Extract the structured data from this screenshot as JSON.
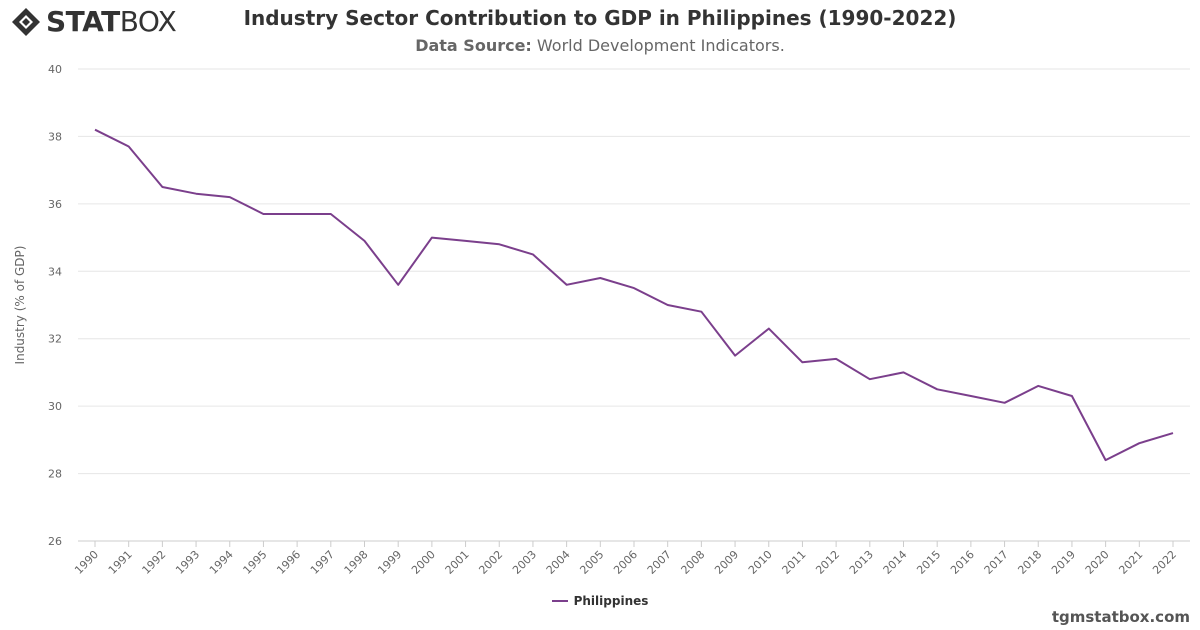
{
  "brand": {
    "logo_bold": "STAT",
    "logo_light": "BOX",
    "colors": {
      "logo": "#333333"
    }
  },
  "header": {
    "title": "Industry Sector Contribution to GDP in Philippines (1990-2022)",
    "subtitle_label": "Data Source:",
    "subtitle_value": "World Development Indicators."
  },
  "footer": {
    "credit": "tgmstatbox.com"
  },
  "chart_data": {
    "type": "line",
    "title": "Industry Sector Contribution to GDP in Philippines (1990-2022)",
    "xlabel": "",
    "ylabel": "Industry (% of GDP)",
    "ylim": [
      26,
      40
    ],
    "yticks": [
      26,
      28,
      30,
      32,
      34,
      36,
      38,
      40
    ],
    "grid": true,
    "legend_position": "bottom-center",
    "x": [
      "1990",
      "1991",
      "1992",
      "1993",
      "1994",
      "1995",
      "1996",
      "1997",
      "1998",
      "1999",
      "2000",
      "2001",
      "2002",
      "2003",
      "2004",
      "2005",
      "2006",
      "2007",
      "2008",
      "2009",
      "2010",
      "2011",
      "2012",
      "2013",
      "2014",
      "2015",
      "2016",
      "2017",
      "2018",
      "2019",
      "2020",
      "2021",
      "2022"
    ],
    "series": [
      {
        "name": "Philippines",
        "color": "#7b3f8c",
        "values": [
          38.2,
          37.7,
          36.5,
          36.3,
          36.2,
          35.7,
          35.7,
          35.7,
          34.9,
          33.6,
          35.0,
          34.9,
          34.8,
          34.5,
          33.6,
          33.8,
          33.5,
          33.0,
          32.8,
          31.5,
          32.3,
          31.3,
          31.4,
          30.8,
          31.0,
          30.5,
          30.3,
          30.1,
          30.6,
          30.3,
          28.4,
          28.9,
          29.2
        ]
      }
    ]
  }
}
